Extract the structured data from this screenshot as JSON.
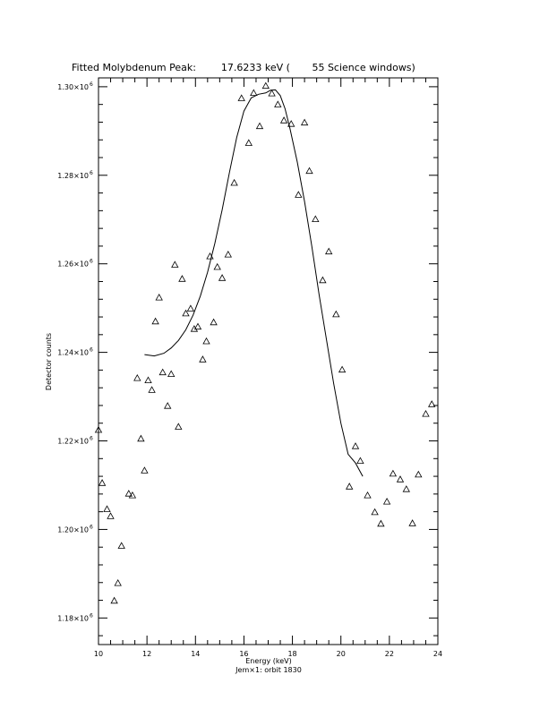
{
  "chart_data": {
    "type": "scatter",
    "title": "Fitted Molybdenum Peak:        17.6233 keV (       55 Science windows)",
    "xlabel": "Energy (keV)",
    "ylabel": "Detector counts",
    "footer": "Jem×1: orbit 1830",
    "xlim": [
      10,
      24
    ],
    "ylim": [
      1.174,
      1.302
    ],
    "x_ticks": [
      10,
      12,
      14,
      16,
      18,
      20,
      22,
      24
    ],
    "x_tick_labels": [
      "10",
      "12",
      "14",
      "16",
      "18",
      "20",
      "22",
      "24"
    ],
    "y_ticks": [
      1.18,
      1.2,
      1.22,
      1.24,
      1.26,
      1.28,
      1.3
    ],
    "y_tick_mantissa": [
      "1.18×10",
      "1.20×10",
      "1.22×10",
      "1.24×10",
      "1.26×10",
      "1.28×10",
      "1.30×10"
    ],
    "y_tick_exponent": "6",
    "y_unit_multiplier": 1000000,
    "grid": false,
    "series": [
      {
        "marker": "triangle",
        "x": [
          10.0,
          10.15,
          10.35,
          10.5,
          10.65,
          10.8,
          10.95,
          11.25,
          11.4,
          11.6,
          11.75,
          11.9,
          12.05,
          12.2,
          12.35,
          12.5,
          12.65,
          12.85,
          13.0,
          13.15,
          13.3,
          13.45,
          13.6,
          13.8,
          13.95,
          14.1,
          14.3,
          14.45,
          14.6,
          14.75,
          14.9,
          15.1,
          15.35,
          15.6,
          15.9,
          16.2,
          16.4,
          16.65,
          16.9,
          17.15,
          17.4,
          17.65,
          17.95,
          18.25,
          18.5,
          18.7,
          18.95,
          19.25,
          19.5,
          19.8,
          20.05,
          20.35,
          20.6,
          20.8,
          21.1,
          21.4,
          21.65,
          21.9,
          22.15,
          22.45,
          22.7,
          22.95,
          23.2,
          23.5,
          23.75
        ],
        "y": [
          1.2225,
          1.2105,
          1.2046,
          1.203,
          1.1839,
          1.1879,
          1.1963,
          1.2081,
          1.2077,
          1.2342,
          1.2205,
          1.2133,
          1.2337,
          1.2315,
          1.247,
          1.2524,
          1.2355,
          1.2279,
          1.2351,
          1.2598,
          1.2232,
          1.2566,
          1.2488,
          1.2499,
          1.2453,
          1.2458,
          1.2384,
          1.2425,
          1.2617,
          1.2468,
          1.2593,
          1.2568,
          1.2621,
          1.2783,
          1.2974,
          1.2873,
          1.2986,
          1.2911,
          1.3002,
          1.2985,
          1.296,
          1.2924,
          1.2916,
          1.2756,
          1.2919,
          1.281,
          1.2701,
          1.2563,
          1.2628,
          1.2486,
          1.2361,
          1.2097,
          1.2188,
          1.2155,
          1.2077,
          1.2039,
          1.2013,
          1.2063,
          1.2126,
          1.2113,
          1.2091,
          1.2014,
          1.2124,
          1.2261,
          1.2283
        ]
      }
    ],
    "fit_curve": {
      "style": "line",
      "x": [
        11.9,
        12.3,
        12.7,
        13.0,
        13.3,
        13.6,
        13.9,
        14.2,
        14.5,
        14.8,
        15.1,
        15.4,
        15.7,
        16.0,
        16.3,
        16.6,
        16.9,
        17.1,
        17.3,
        17.5,
        17.7,
        17.9,
        18.2,
        18.5,
        18.8,
        19.1,
        19.4,
        19.7,
        20.0,
        20.3,
        20.6,
        20.9
      ],
      "y": [
        1.2395,
        1.2392,
        1.2398,
        1.241,
        1.2427,
        1.2451,
        1.2484,
        1.2527,
        1.2581,
        1.2646,
        1.2722,
        1.2806,
        1.2885,
        1.2945,
        1.2975,
        1.2983,
        1.2986,
        1.2992,
        1.2993,
        1.298,
        1.295,
        1.2905,
        1.283,
        1.2741,
        1.264,
        1.253,
        1.243,
        1.233,
        1.224,
        1.217,
        1.215,
        1.212
      ]
    }
  }
}
